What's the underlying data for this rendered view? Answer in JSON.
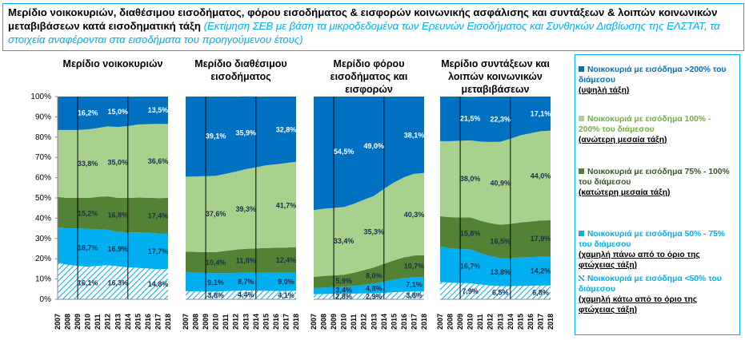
{
  "header": {
    "title": "Μερίδιο νοικοκυριών, διαθέσιμου εισοδήματος, φόρου εισοδήματος & εισφορών κοινωνικής ασφάλισης και συντάξεων & λοιπών κοινωνικών μεταβιβάσεων κατά εισοδηματική τάξη",
    "subtitle": "(Εκτίμηση ΣΕΒ με βάση τα μικροδεδομένα των Ερευνών Εισοδήματος και Συνθηκών Διαβίωσης της ΕΛΣΤΑΤ, τα στοιχεία αναφέρονται στα εισοδήματα του προηγούμενου έτους)"
  },
  "legend": [
    {
      "label": "Νοικοκυριά με εισόδημα >200% του διάμεσου",
      "class": "(υψηλή τάξη)"
    },
    {
      "label": "Νοικοκυριά με εισόδημα 100% - 200% του διάμεσου",
      "class": "(ανώτερη μεσαία τάξη)"
    },
    {
      "label": "Νοικοκυριά με εισόδημα 75% - 100% του διάμεσου",
      "class": "(κατώτερη μεσαία τάξη)"
    },
    {
      "label": "Νοικοκυριά με εισόδημα 50% - 75% του διάμεσου",
      "class": "(χαμηλή πάνω από το όριο της φτώχειας τάξη)"
    },
    {
      "label": "Νοικοκυριά με εισόδημα <50% του διάμεσου",
      "class": "(χαμηλή κάτω από το όριο της φτώχειας τάξη)"
    }
  ],
  "chart_data": [
    {
      "type": "stacked_area",
      "title": "Μερίδιο νοικοκυριών",
      "categories": [
        "2007",
        "2008",
        "2009",
        "2010",
        "2011",
        "2012",
        "2013",
        "2014",
        "2015",
        "2016",
        "2017",
        "2018"
      ],
      "ylim": [
        0,
        100
      ],
      "yticks": [
        {
          "value": 0,
          "label": "0%"
        },
        {
          "value": 10,
          "label": "10%"
        },
        {
          "value": 20,
          "label": "20%"
        },
        {
          "value": 30,
          "label": "30%"
        },
        {
          "value": 40,
          "label": "40%"
        },
        {
          "value": 50,
          "label": "50%"
        },
        {
          "value": 60,
          "label": "60%"
        },
        {
          "value": 70,
          "label": "70%"
        },
        {
          "value": 80,
          "label": "80%"
        },
        {
          "value": 90,
          "label": "90%"
        },
        {
          "value": 100,
          "label": "100%"
        }
      ],
      "series": [
        {
          "color": "#00b0f0",
          "pattern": "hatch",
          "values": [
            18.0,
            17.0,
            16.5,
            16.1,
            16.5,
            16.8,
            16.3,
            15.8,
            15.5,
            15.2,
            14.8,
            15.0
          ],
          "value_labels": [
            null,
            null,
            null,
            "16,1%",
            null,
            null,
            "16,3%",
            null,
            null,
            null,
            "14,8%",
            null
          ]
        },
        {
          "color": "#00b0f0",
          "values": [
            17.5,
            18.0,
            18.5,
            18.7,
            18.0,
            17.5,
            16.9,
            17.2,
            17.5,
            17.6,
            17.7,
            17.5
          ],
          "value_labels": [
            null,
            null,
            null,
            "18,7%",
            null,
            null,
            "16,9%",
            null,
            null,
            null,
            "17,7%",
            null
          ]
        },
        {
          "color": "#548235",
          "values": [
            15.0,
            15.0,
            15.0,
            15.2,
            16.0,
            16.5,
            16.8,
            17.0,
            17.2,
            17.3,
            17.4,
            17.5
          ],
          "value_labels": [
            null,
            null,
            null,
            "15,2%",
            null,
            null,
            "16,8%",
            null,
            null,
            null,
            "17,4%",
            null
          ]
        },
        {
          "color": "#a9d18e",
          "values": [
            33.0,
            33.5,
            33.5,
            33.8,
            34.0,
            34.5,
            35.0,
            35.5,
            36.0,
            36.3,
            36.6,
            36.5
          ],
          "value_labels": [
            null,
            null,
            null,
            "33,8%",
            null,
            null,
            "35,0%",
            null,
            null,
            null,
            "36,6%",
            null
          ]
        },
        {
          "color": "#0070c0",
          "values": [
            16.5,
            16.5,
            16.5,
            16.2,
            15.5,
            14.7,
            15.0,
            14.5,
            13.8,
            13.6,
            13.5,
            13.5
          ],
          "value_labels": [
            null,
            null,
            null,
            "16,2%",
            null,
            null,
            "15,0%",
            null,
            null,
            null,
            "13,5%",
            null
          ]
        }
      ]
    },
    {
      "type": "stacked_area",
      "title": "Μερίδιο διαθέσιμου εισοδήματος",
      "categories": [
        "2007",
        "2008",
        "2009",
        "2010",
        "2011",
        "2012",
        "2013",
        "2014",
        "2015",
        "2016",
        "2017",
        "2018"
      ],
      "ylim": [
        0,
        100
      ],
      "series": [
        {
          "color": "#00b0f0",
          "pattern": "hatch",
          "values": [
            4.0,
            3.9,
            3.8,
            3.8,
            4.0,
            4.2,
            4.4,
            4.3,
            4.2,
            4.1,
            4.1,
            4.2
          ],
          "value_labels": [
            null,
            null,
            null,
            "3,8%",
            null,
            null,
            "4,4%",
            null,
            null,
            null,
            "4,1%",
            null
          ]
        },
        {
          "color": "#00b0f0",
          "values": [
            9.5,
            9.3,
            9.2,
            9.1,
            8.9,
            8.8,
            8.7,
            8.8,
            8.9,
            9.0,
            9.0,
            9.1
          ],
          "value_labels": [
            null,
            null,
            null,
            "9,1%",
            null,
            null,
            "8,7%",
            null,
            null,
            null,
            "9,0%",
            null
          ]
        },
        {
          "color": "#548235",
          "values": [
            10.0,
            10.2,
            10.3,
            10.4,
            11.0,
            11.5,
            11.8,
            12.0,
            12.2,
            12.3,
            12.4,
            12.5
          ],
          "value_labels": [
            null,
            null,
            null,
            "10,4%",
            null,
            null,
            "11,8%",
            null,
            null,
            null,
            "12,4%",
            null
          ]
        },
        {
          "color": "#a9d18e",
          "values": [
            37.0,
            37.2,
            37.5,
            37.6,
            38.0,
            38.5,
            39.3,
            40.0,
            40.8,
            41.2,
            41.7,
            42.0
          ],
          "value_labels": [
            null,
            null,
            null,
            "37,6%",
            null,
            null,
            "39,3%",
            null,
            null,
            null,
            "41,7%",
            null
          ]
        },
        {
          "color": "#0070c0",
          "values": [
            39.5,
            39.4,
            39.2,
            39.1,
            38.1,
            37.0,
            35.9,
            34.9,
            33.9,
            33.4,
            32.8,
            32.2
          ],
          "value_labels": [
            null,
            null,
            null,
            "39,1%",
            null,
            null,
            "35,9%",
            null,
            null,
            null,
            "32,8%",
            null
          ]
        }
      ]
    },
    {
      "type": "stacked_area",
      "title": "Μερίδιο φόρου εισοδήματος και εισφορών",
      "categories": [
        "2007",
        "2008",
        "2009",
        "2010",
        "2011",
        "2012",
        "2013",
        "2014",
        "2015",
        "2016",
        "2017",
        "2018"
      ],
      "ylim": [
        0,
        100
      ],
      "series": [
        {
          "color": "#00b0f0",
          "pattern": "hatch",
          "values": [
            2.5,
            2.6,
            2.7,
            2.8,
            2.8,
            2.9,
            2.9,
            3.2,
            3.5,
            3.7,
            3.8,
            3.8
          ],
          "value_labels": [
            null,
            null,
            null,
            "2,8%",
            null,
            null,
            "2,9%",
            null,
            null,
            null,
            "3,8%",
            null
          ]
        },
        {
          "color": "#00b0f0",
          "values": [
            3.0,
            3.2,
            3.3,
            3.4,
            3.8,
            4.3,
            4.8,
            5.5,
            6.2,
            6.8,
            7.1,
            7.2
          ],
          "value_labels": [
            null,
            null,
            null,
            "3,4%",
            null,
            null,
            "4,8%",
            null,
            null,
            null,
            "7,1%",
            null
          ]
        },
        {
          "color": "#548235",
          "values": [
            5.5,
            5.7,
            5.8,
            5.9,
            6.5,
            7.2,
            8.0,
            8.8,
            9.5,
            10.2,
            10.7,
            10.8
          ],
          "value_labels": [
            null,
            null,
            null,
            "5,9%",
            null,
            null,
            "8,0%",
            null,
            null,
            null,
            "10,7%",
            null
          ]
        },
        {
          "color": "#a9d18e",
          "values": [
            33.0,
            33.2,
            33.3,
            33.4,
            34.0,
            34.7,
            35.3,
            37.0,
            38.5,
            39.5,
            40.3,
            40.5
          ],
          "value_labels": [
            null,
            null,
            null,
            "33,4%",
            null,
            null,
            "35,3%",
            null,
            null,
            null,
            "40,3%",
            null
          ]
        },
        {
          "color": "#0070c0",
          "values": [
            56.0,
            55.3,
            54.9,
            54.5,
            52.9,
            50.9,
            49.0,
            45.5,
            42.3,
            39.8,
            38.1,
            37.7
          ],
          "value_labels": [
            null,
            null,
            null,
            "54,5%",
            null,
            null,
            "49,0%",
            null,
            null,
            null,
            "38,1%",
            null
          ]
        }
      ]
    },
    {
      "type": "stacked_area",
      "title": "Μερίδιο συντάξεων και λοιπών κοινωνικών μεταβιβάσεων",
      "categories": [
        "2007",
        "2008",
        "2009",
        "2010",
        "2011",
        "2012",
        "2013",
        "2014",
        "2015",
        "2016",
        "2017",
        "2018"
      ],
      "ylim": [
        0,
        100
      ],
      "series": [
        {
          "color": "#00b0f0",
          "pattern": "hatch",
          "values": [
            8.5,
            8.2,
            8.0,
            7.9,
            7.3,
            6.8,
            6.5,
            6.5,
            6.6,
            6.7,
            6.8,
            6.8
          ],
          "value_labels": [
            null,
            null,
            null,
            "7,9%",
            null,
            null,
            "6,5%",
            null,
            null,
            null,
            "6,8%",
            null
          ]
        },
        {
          "color": "#00b0f0",
          "values": [
            17.5,
            17.0,
            16.8,
            16.7,
            15.5,
            14.5,
            13.8,
            13.8,
            14.0,
            14.1,
            14.2,
            14.2
          ],
          "value_labels": [
            null,
            null,
            null,
            "16,7%",
            null,
            null,
            "13,8%",
            null,
            null,
            null,
            "14,2%",
            null
          ]
        },
        {
          "color": "#548235",
          "values": [
            15.0,
            15.3,
            15.6,
            15.8,
            16.0,
            16.3,
            16.5,
            16.9,
            17.3,
            17.6,
            17.9,
            18.0
          ],
          "value_labels": [
            null,
            null,
            null,
            "15,8%",
            null,
            null,
            "16,5%",
            null,
            null,
            null,
            "17,9%",
            null
          ]
        },
        {
          "color": "#a9d18e",
          "values": [
            37.0,
            37.5,
            37.8,
            38.0,
            39.0,
            40.0,
            40.9,
            42.0,
            43.0,
            43.5,
            44.0,
            44.2
          ],
          "value_labels": [
            null,
            null,
            null,
            "38,0%",
            null,
            null,
            "40,9%",
            null,
            null,
            null,
            "44,0%",
            null
          ]
        },
        {
          "color": "#0070c0",
          "values": [
            22.0,
            22.0,
            21.8,
            21.5,
            22.2,
            22.4,
            22.3,
            20.8,
            19.1,
            18.1,
            17.1,
            16.8
          ],
          "value_labels": [
            null,
            null,
            null,
            "21,5%",
            null,
            null,
            "22,3%",
            null,
            null,
            null,
            "17,1%",
            null
          ]
        }
      ]
    }
  ]
}
